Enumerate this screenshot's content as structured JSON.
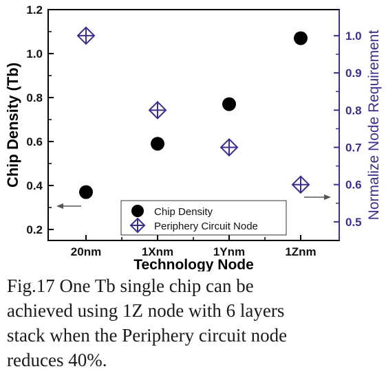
{
  "chart_data": {
    "type": "scatter",
    "categories": [
      "20nm",
      "1Xnm",
      "1Ynm",
      "1Znm"
    ],
    "xlabel": "Technology Node",
    "ylabel": "Chip Density (Tb)",
    "ylabel_right": "Normalize Node Requirement",
    "ylim": [
      0.15,
      1.2
    ],
    "ylim_right": [
      0.45,
      1.07
    ],
    "yticks": [
      "0.2",
      "0.4",
      "0.6",
      "0.8",
      "1.0",
      "1.2"
    ],
    "yticks_right": [
      "0.5",
      "0.6",
      "0.7",
      "0.8",
      "0.9",
      "1.0"
    ],
    "series": [
      {
        "name": "Chip Density",
        "axis": "left",
        "marker": "filled-circle",
        "color": "#000000",
        "values": [
          0.37,
          0.59,
          0.77,
          1.07
        ]
      },
      {
        "name": "Periphery Circuit Node",
        "axis": "right",
        "marker": "crossed-diamond",
        "color": "#3a2f8c",
        "values": [
          1.0,
          0.8,
          0.7,
          0.6
        ]
      }
    ],
    "legend_position": "bottom-center",
    "colors": {
      "left_axis": "#000000",
      "right_axis": "#3a2f8c"
    }
  },
  "caption": {
    "lines": [
      "Fig.17 One Tb single chip can be",
      "achieved using 1Z node with 6 layers",
      "stack when the Periphery circuit node",
      "reduces 40%."
    ]
  }
}
